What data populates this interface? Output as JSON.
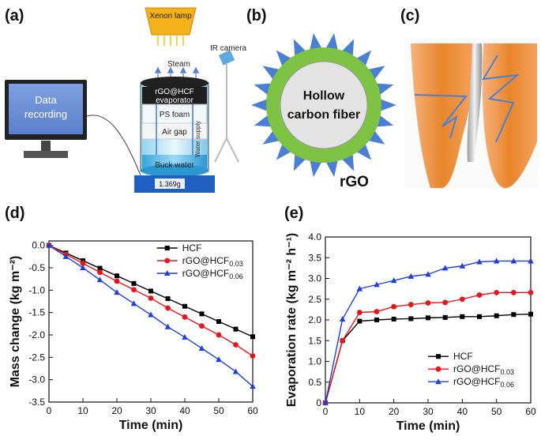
{
  "panels": {
    "a": {
      "label": "(a)",
      "lamp": "Xenon lamp",
      "ir_camera": "IR camera",
      "steam": "Steam",
      "evaporator_1": "rGO@HCF",
      "evaporator_2": "evaporator",
      "foam": "PS foam",
      "air_gap": "Air gap",
      "water_supply": "Water supply",
      "buck_water": "Buck water",
      "balance_reading": "1.369g",
      "monitor_line1": "Data",
      "monitor_line2": "recording"
    },
    "b": {
      "label": "(b)",
      "core_line1": "Hollow",
      "core_line2": "carbon fiber",
      "shell": "rGO"
    },
    "c": {
      "label": "(c)"
    },
    "d": {
      "label": "(d)"
    },
    "e": {
      "label": "(e)"
    }
  },
  "colors": {
    "hcf": "#000000",
    "rgo003": "#e8151b",
    "rgo006": "#1f3fd6",
    "spike": "#4a7fd4",
    "shell": "#7dc242",
    "orange": "#e8852a"
  },
  "chart_data": [
    {
      "id": "d",
      "type": "line",
      "xlabel": "Time (min)",
      "ylabel": "Mass change (kg m⁻²)",
      "xlim": [
        0,
        60
      ],
      "ylim": [
        -3.5,
        0.1
      ],
      "xticks": [
        0,
        10,
        20,
        30,
        40,
        50,
        60
      ],
      "yticks": [
        0.0,
        -0.5,
        -1.0,
        -1.5,
        -2.0,
        -2.5,
        -3.0,
        -3.5
      ],
      "ytick_labels": [
        "0.0",
        "-0.5",
        "-1.0",
        "-1.5",
        "-2.0",
        "-2.5",
        "-3.0",
        "-3.5"
      ],
      "legend_position": "top-right",
      "series": [
        {
          "name": "HCF",
          "legend_base": "HCF",
          "legend_sub": "",
          "color": "#000000",
          "marker": "square",
          "x": [
            0,
            5,
            10,
            15,
            20,
            25,
            30,
            35,
            40,
            45,
            50,
            55,
            60
          ],
          "y": [
            0.0,
            -0.17,
            -0.34,
            -0.51,
            -0.68,
            -0.85,
            -1.02,
            -1.19,
            -1.36,
            -1.53,
            -1.7,
            -1.87,
            -2.04
          ]
        },
        {
          "name": "rGO@HCF0.03",
          "legend_base": "rGO@HCF",
          "legend_sub": "0.03",
          "color": "#e8151b",
          "marker": "circle",
          "x": [
            0,
            5,
            10,
            15,
            20,
            25,
            30,
            35,
            40,
            45,
            50,
            55,
            60
          ],
          "y": [
            0.0,
            -0.2,
            -0.4,
            -0.6,
            -0.8,
            -0.99,
            -1.18,
            -1.4,
            -1.6,
            -1.8,
            -2.0,
            -2.22,
            -2.47
          ]
        },
        {
          "name": "rGO@HCF0.06",
          "legend_base": "rGO@HCF",
          "legend_sub": "0.06",
          "color": "#1f3fd6",
          "marker": "triangle",
          "x": [
            0,
            5,
            10,
            15,
            20,
            25,
            30,
            35,
            40,
            45,
            50,
            55,
            60
          ],
          "y": [
            0.0,
            -0.25,
            -0.5,
            -0.77,
            -1.05,
            -1.3,
            -1.55,
            -1.82,
            -2.05,
            -2.3,
            -2.55,
            -2.82,
            -3.15
          ]
        }
      ]
    },
    {
      "id": "e",
      "type": "line",
      "xlabel": "Time (min)",
      "ylabel": "Evaporation rate (kg m⁻² h⁻¹)",
      "xlim": [
        0,
        60
      ],
      "ylim": [
        0,
        4.0
      ],
      "xticks": [
        0,
        10,
        20,
        30,
        40,
        50,
        60
      ],
      "yticks": [
        0,
        0.5,
        1.0,
        1.5,
        2.0,
        2.5,
        3.0,
        3.5,
        4.0
      ],
      "ytick_labels": [
        "0",
        "0.5",
        "1.0",
        "1.5",
        "2.0",
        "2.5",
        "3.0",
        "3.5",
        "4.0"
      ],
      "legend_position": "bottom-right",
      "series": [
        {
          "name": "HCF",
          "legend_base": "HCF",
          "legend_sub": "",
          "color": "#000000",
          "marker": "square",
          "x": [
            0,
            5,
            10,
            15,
            20,
            25,
            30,
            35,
            40,
            45,
            50,
            55,
            60
          ],
          "y": [
            0,
            1.5,
            1.97,
            2.0,
            2.02,
            2.03,
            2.05,
            2.06,
            2.08,
            2.08,
            2.1,
            2.13,
            2.14
          ]
        },
        {
          "name": "rGO@HCF0.03",
          "legend_base": "rGO@HCF",
          "legend_sub": "0.03",
          "color": "#e8151b",
          "marker": "circle",
          "x": [
            0,
            5,
            10,
            15,
            20,
            25,
            30,
            35,
            40,
            45,
            50,
            55,
            60
          ],
          "y": [
            0,
            1.5,
            2.18,
            2.2,
            2.32,
            2.37,
            2.41,
            2.42,
            2.5,
            2.6,
            2.66,
            2.66,
            2.66
          ]
        },
        {
          "name": "rGO@HCF0.06",
          "legend_base": "rGO@HCF",
          "legend_sub": "0.06",
          "color": "#1f3fd6",
          "marker": "triangle",
          "x": [
            0,
            5,
            10,
            15,
            20,
            25,
            30,
            35,
            40,
            45,
            50,
            55,
            60
          ],
          "y": [
            0,
            2.02,
            2.75,
            2.85,
            2.95,
            3.05,
            3.1,
            3.25,
            3.3,
            3.4,
            3.42,
            3.42,
            3.42
          ]
        }
      ]
    }
  ]
}
